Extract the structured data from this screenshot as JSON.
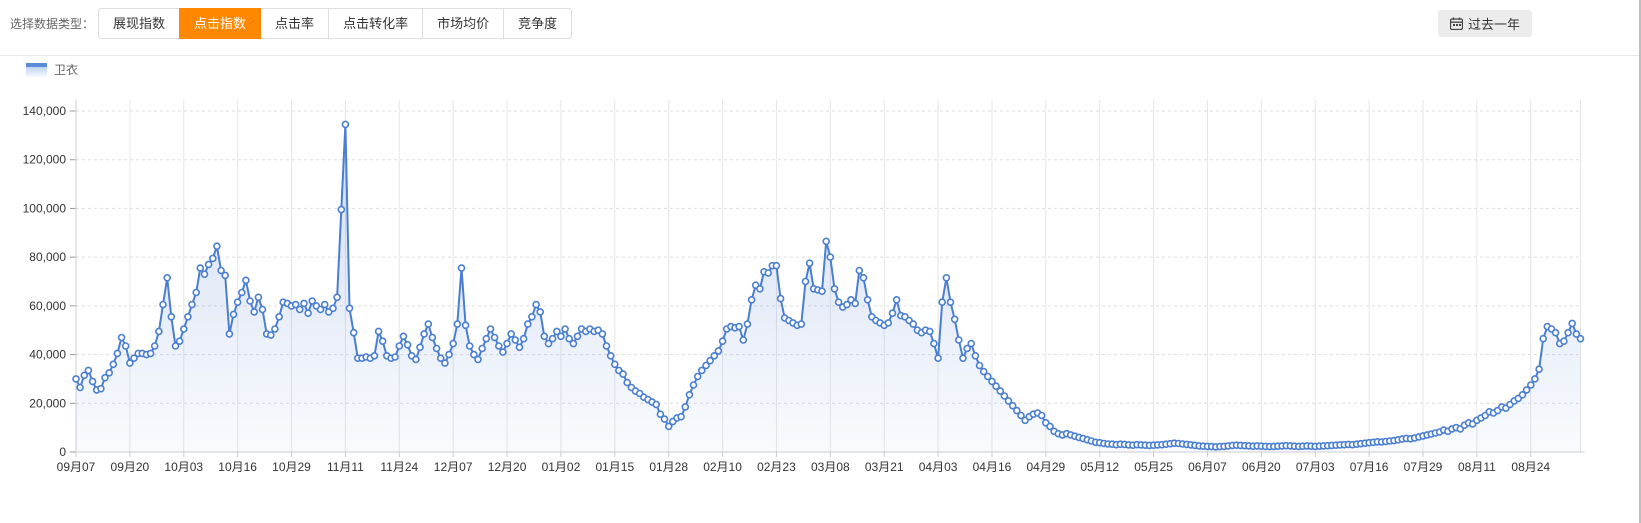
{
  "toolbar": {
    "label": "选择数据类型：",
    "tabs": [
      {
        "id": "display-index",
        "label": "展现指数",
        "active": false
      },
      {
        "id": "click-index",
        "label": "点击指数",
        "active": true
      },
      {
        "id": "click-rate",
        "label": "点击率",
        "active": false
      },
      {
        "id": "click-conversion-rate",
        "label": "点击转化率",
        "active": false
      },
      {
        "id": "market-avg-price",
        "label": "市场均价",
        "active": false
      },
      {
        "id": "competition",
        "label": "竞争度",
        "active": false
      }
    ],
    "range_button": {
      "label": "过去一年",
      "icon": "calendar-icon"
    }
  },
  "legend": {
    "items": [
      {
        "label": "卫衣",
        "color": "#4a7ed1"
      }
    ]
  },
  "colors": {
    "accent": "#ff8800",
    "line": "#4a7ed1",
    "marker_fill": "#ffffff",
    "grid_dashed": "#dddddd",
    "grid_vertical": "#e6e6e6",
    "axis": "#cccccc",
    "tick": "#999999",
    "label_text": "#333333",
    "muted_text": "#666666",
    "area_top": "rgba(93,135,212,0.28)",
    "area_bottom": "rgba(93,135,212,0.04)"
  },
  "chart_data": {
    "type": "line",
    "title": "",
    "xlabel": "",
    "ylabel": "",
    "grid": true,
    "area_fill": true,
    "marker": "circle",
    "legend_position": "top-left",
    "ylim": [
      0,
      140000
    ],
    "y_tick_step": 20000,
    "y_tick_labels": [
      "0",
      "20,000",
      "40,000",
      "60,000",
      "80,000",
      "100,000",
      "120,000",
      "140,000"
    ],
    "x_tick_interval": 13,
    "x_tick_labels": [
      "09月07",
      "09月20",
      "10月03",
      "10月16",
      "10月29",
      "11月11",
      "11月24",
      "12月07",
      "12月20",
      "01月02",
      "01月15",
      "01月28",
      "02月10",
      "02月23",
      "03月08",
      "03月21",
      "04月03",
      "04月16",
      "04月29",
      "05月12",
      "05月25",
      "06月07",
      "06月20",
      "07月03",
      "07月16",
      "07月29",
      "08月11",
      "08月24"
    ],
    "series": [
      {
        "name": "卫衣",
        "color": "#4a7ed1",
        "values": [
          30000,
          26500,
          31500,
          33500,
          29000,
          25500,
          26000,
          30500,
          32500,
          36000,
          40500,
          47000,
          43500,
          36500,
          38500,
          40500,
          40500,
          40000,
          40500,
          43500,
          49500,
          60500,
          71500,
          55500,
          43500,
          45500,
          50500,
          55500,
          60500,
          65500,
          75500,
          73000,
          77000,
          79500,
          84500,
          74500,
          72500,
          48500,
          56500,
          61500,
          65500,
          70500,
          62000,
          57500,
          63500,
          58500,
          48500,
          48000,
          50500,
          55500,
          61500,
          61000,
          60000,
          60500,
          58500,
          61000,
          57000,
          62000,
          60000,
          58500,
          60500,
          57500,
          59000,
          63500,
          99500,
          134500,
          59000,
          49000,
          38500,
          38500,
          39000,
          38500,
          39500,
          49500,
          45500,
          39500,
          38500,
          39000,
          43500,
          47500,
          44000,
          39500,
          38000,
          43000,
          48500,
          52500,
          47000,
          42500,
          38500,
          36500,
          40000,
          44500,
          52500,
          75500,
          52000,
          43500,
          40000,
          38000,
          42500,
          46500,
          50500,
          47000,
          43500,
          41000,
          44500,
          48500,
          46000,
          43000,
          46500,
          52500,
          55500,
          60500,
          57500,
          47500,
          44500,
          46500,
          49500,
          47500,
          50500,
          46500,
          44500,
          47500,
          50500,
          49500,
          50500,
          49500,
          50000,
          48500,
          43500,
          39500,
          36000,
          33500,
          32000,
          28500,
          26500,
          25000,
          24000,
          22500,
          21500,
          20500,
          19500,
          15500,
          13500,
          10500,
          12500,
          14000,
          14500,
          18500,
          23500,
          27500,
          31000,
          33500,
          35500,
          37500,
          39500,
          41500,
          45500,
          50500,
          51500,
          51000,
          51500,
          46000,
          52500,
          62500,
          68500,
          67000,
          74000,
          73500,
          76500,
          76500,
          63000,
          55000,
          54000,
          53000,
          52000,
          52500,
          70000,
          77500,
          67000,
          66500,
          66000,
          86500,
          80000,
          67000,
          61500,
          59500,
          60500,
          62500,
          61000,
          74500,
          71500,
          62500,
          55500,
          54000,
          53000,
          52000,
          53000,
          57000,
          62500,
          56000,
          55500,
          54000,
          52500,
          50000,
          49000,
          50000,
          49500,
          44500,
          38500,
          61500,
          71500,
          61500,
          54500,
          46000,
          38500,
          42500,
          44500,
          39500,
          35500,
          33000,
          31000,
          29000,
          27000,
          25000,
          23000,
          21000,
          19000,
          17000,
          15000,
          13000,
          14500,
          15500,
          16000,
          15000,
          12000,
          10500,
          8500,
          7500,
          7000,
          7500,
          7000,
          6500,
          6000,
          5500,
          5000,
          4500,
          4000,
          3800,
          3500,
          3300,
          3200,
          3000,
          3200,
          3100,
          2900,
          2800,
          3000,
          2900,
          2800,
          2700,
          2800,
          2900,
          3000,
          3200,
          3400,
          3600,
          3500,
          3300,
          3100,
          2900,
          2700,
          2500,
          2400,
          2300,
          2200,
          2100,
          2200,
          2300,
          2500,
          2700,
          2800,
          2700,
          2600,
          2500,
          2400,
          2500,
          2400,
          2300,
          2200,
          2300,
          2400,
          2500,
          2600,
          2500,
          2400,
          2300,
          2400,
          2500,
          2400,
          2300,
          2400,
          2500,
          2600,
          2700,
          2800,
          2900,
          3000,
          3100,
          3000,
          3200,
          3400,
          3600,
          3800,
          4000,
          4200,
          4100,
          4300,
          4500,
          4700,
          5000,
          5300,
          5600,
          5400,
          5800,
          6200,
          6600,
          7000,
          7400,
          7800,
          8200,
          9000,
          8500,
          9500,
          10000,
          9500,
          11000,
          12000,
          11500,
          13000,
          14000,
          15000,
          16500,
          16000,
          17000,
          18500,
          18000,
          19500,
          21000,
          22000,
          23500,
          25500,
          27500,
          30000,
          34000,
          46500,
          51500,
          50500,
          49000,
          44500,
          45500,
          49000,
          52800,
          48400,
          46500
        ]
      }
    ]
  }
}
